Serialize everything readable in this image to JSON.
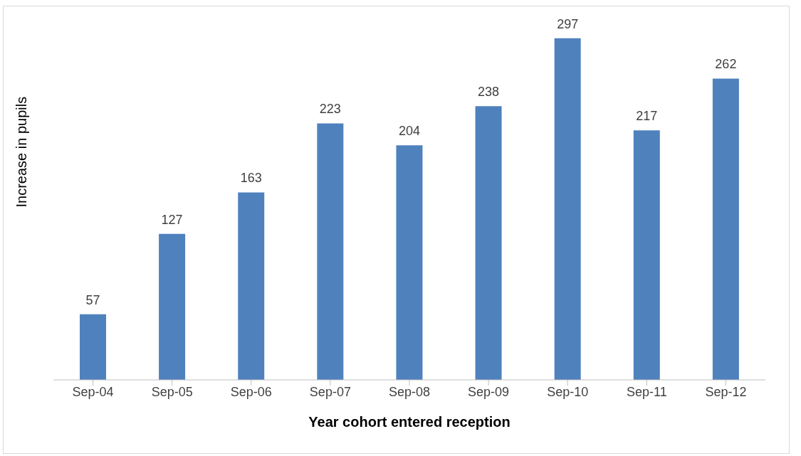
{
  "chart_data": {
    "type": "bar",
    "xlabel": "Year cohort entered reception",
    "ylabel": "Increase in pupils",
    "categories": [
      "Sep-04",
      "Sep-05",
      "Sep-06",
      "Sep-07",
      "Sep-08",
      "Sep-09",
      "Sep-10",
      "Sep-11",
      "Sep-12"
    ],
    "values": [
      57,
      127,
      163,
      223,
      204,
      238,
      297,
      217,
      262
    ],
    "color": "#4f81bd",
    "data_labels": true,
    "grid": false,
    "legend": false
  }
}
